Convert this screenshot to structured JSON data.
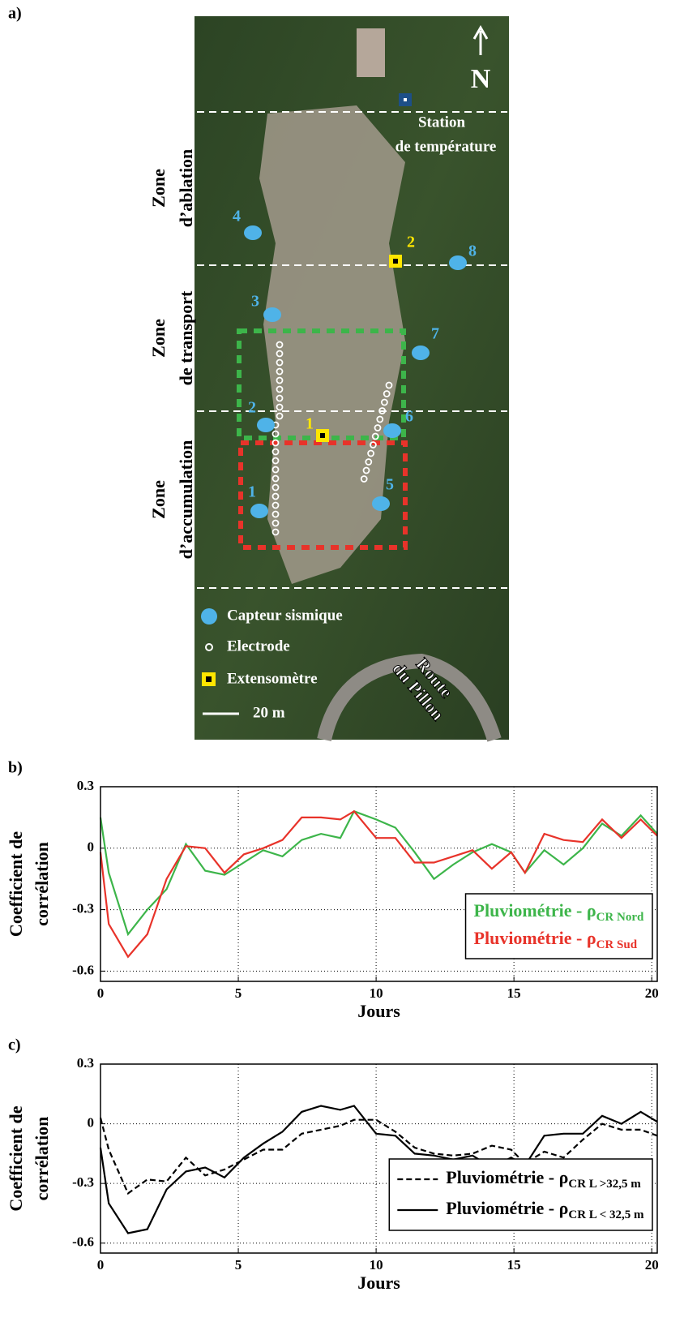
{
  "map": {
    "panel_label": "a)",
    "north": "N",
    "station": [
      "Station",
      "de température"
    ],
    "zones": [
      [
        "Zone",
        "d’ablation"
      ],
      [
        "Zone",
        "de transport"
      ],
      [
        "Zone",
        "d’accumulation"
      ]
    ],
    "sensors": [
      "1",
      "2",
      "3",
      "4",
      "5",
      "6",
      "7",
      "8"
    ],
    "extensometers": [
      "1",
      "2"
    ],
    "legend": [
      "Capteur sismique",
      "Electrode",
      "Extensomètre"
    ],
    "scale": "20 m",
    "road": [
      "Route",
      "du Pillon"
    ]
  },
  "chart_data": [
    {
      "type": "line",
      "panel_label": "b)",
      "xlabel": "Jours",
      "ylabel": [
        "Coefficient de",
        "corrélation"
      ],
      "x": [
        0,
        0.3,
        1,
        1.7,
        2.4,
        3.1,
        3.8,
        4.5,
        5.2,
        5.9,
        6.6,
        7.3,
        8,
        8.7,
        9.2,
        10,
        10.7,
        11.4,
        12.1,
        12.8,
        13.5,
        14.2,
        14.9,
        15.4,
        16.1,
        16.8,
        17.5,
        18.2,
        18.9,
        19.6,
        20.2
      ],
      "xlim": [
        0,
        20.2
      ],
      "xticks": [
        0,
        5,
        10,
        15,
        20
      ],
      "ylim": [
        -0.65,
        0.3
      ],
      "yticks": [
        -0.6,
        -0.3,
        0,
        0.3
      ],
      "grid": true,
      "legend": "lower right",
      "legend_line": false,
      "series": [
        {
          "name": "Pluviométrie - ρ",
          "subscript": "CR Nord",
          "color": "#3db54a",
          "dash": false,
          "values": [
            0.15,
            -0.12,
            -0.42,
            -0.3,
            -0.2,
            0.02,
            -0.11,
            -0.13,
            -0.07,
            -0.01,
            -0.04,
            0.04,
            0.07,
            0.05,
            0.18,
            0.14,
            0.1,
            -0.02,
            -0.15,
            -0.08,
            -0.02,
            0.02,
            -0.02,
            -0.12,
            -0.01,
            -0.08,
            0.0,
            0.12,
            0.06,
            0.16,
            0.07
          ]
        },
        {
          "name": "Pluviométrie - ρ",
          "subscript": "CR Sud",
          "color": "#e8332a",
          "dash": false,
          "values": [
            -0.02,
            -0.37,
            -0.53,
            -0.42,
            -0.15,
            0.01,
            0.0,
            -0.12,
            -0.03,
            0.0,
            0.04,
            0.15,
            0.15,
            0.14,
            0.18,
            0.05,
            0.05,
            -0.07,
            -0.07,
            -0.04,
            -0.01,
            -0.1,
            -0.02,
            -0.12,
            0.07,
            0.04,
            0.03,
            0.14,
            0.05,
            0.14,
            0.06
          ]
        }
      ]
    },
    {
      "type": "line",
      "panel_label": "c)",
      "xlabel": "Jours",
      "ylabel": [
        "Coefficient de",
        "corrélation"
      ],
      "x": [
        0,
        0.3,
        1,
        1.7,
        2.4,
        3.1,
        3.8,
        4.5,
        5.2,
        5.9,
        6.6,
        7.3,
        8,
        8.7,
        9.2,
        10,
        10.7,
        11.4,
        12.1,
        12.8,
        13.5,
        14.2,
        14.9,
        15.4,
        16.1,
        16.8,
        17.5,
        18.2,
        18.9,
        19.6,
        20.2
      ],
      "xlim": [
        0,
        20.2
      ],
      "xticks": [
        0,
        5,
        10,
        15,
        20
      ],
      "ylim": [
        -0.65,
        0.3
      ],
      "yticks": [
        -0.6,
        -0.3,
        0,
        0.3
      ],
      "grid": true,
      "legend": "lower right",
      "legend_line": true,
      "series": [
        {
          "name": "Pluviométrie - ρ",
          "subscript": "CR L >32,5 m",
          "color": "#000000",
          "dash": true,
          "values": [
            0.03,
            -0.13,
            -0.35,
            -0.28,
            -0.29,
            -0.17,
            -0.26,
            -0.23,
            -0.18,
            -0.13,
            -0.13,
            -0.05,
            -0.03,
            -0.01,
            0.02,
            0.02,
            -0.04,
            -0.12,
            -0.15,
            -0.16,
            -0.15,
            -0.11,
            -0.13,
            -0.2,
            -0.14,
            -0.17,
            -0.08,
            0.0,
            -0.03,
            -0.03,
            -0.06
          ]
        },
        {
          "name": "Pluviométrie - ρ",
          "subscript": "CR L < 32,5 m",
          "color": "#000000",
          "dash": false,
          "values": [
            -0.12,
            -0.4,
            -0.55,
            -0.53,
            -0.33,
            -0.24,
            -0.22,
            -0.27,
            -0.17,
            -0.1,
            -0.04,
            0.06,
            0.09,
            0.07,
            0.09,
            -0.05,
            -0.06,
            -0.15,
            -0.16,
            -0.18,
            -0.16,
            -0.22,
            -0.17,
            -0.21,
            -0.06,
            -0.05,
            -0.05,
            0.04,
            0.0,
            0.06,
            0.01
          ]
        }
      ]
    }
  ]
}
